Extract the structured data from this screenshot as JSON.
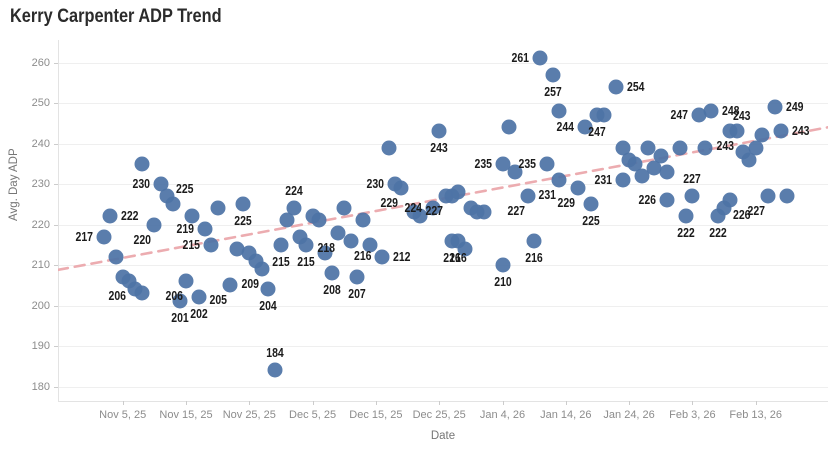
{
  "title": "Kerry Carpenter ADP Trend",
  "colors": {
    "point": "#4d73a6",
    "trend_line": "#ecacb0",
    "gridline": "#efefef",
    "axis_text": "#8c8c8c",
    "label_text": "#1b1b1b",
    "title_text": "#2b2b2b",
    "background": "#ffffff"
  },
  "chart_data": {
    "type": "scatter",
    "title": "Kerry Carpenter ADP Trend",
    "xlabel": "Date",
    "ylabel": "Avg. Day ADP",
    "ylim": [
      176,
      266
    ],
    "y_ticks": [
      180,
      190,
      200,
      210,
      220,
      230,
      240,
      250,
      260
    ],
    "x_tick_labels": [
      "Nov 5, 25",
      "Nov 15, 25",
      "Nov 25, 25",
      "Dec 5, 25",
      "Dec 15, 25",
      "Dec 25, 25",
      "Jan 4, 26",
      "Jan 14, 26",
      "Jan 24, 26",
      "Feb 3, 26",
      "Feb 13, 26"
    ],
    "grid": "horizontal-only",
    "legend": "none",
    "trend_line": {
      "style": "dashed",
      "start_value": 208.8,
      "end_value": 244,
      "note": "linear trend across full plot width"
    },
    "points": [
      {
        "date": "Nov 2, 25",
        "adp": 217,
        "label": "217",
        "label_pos": "l"
      },
      {
        "date": "Nov 3, 25",
        "adp": 222,
        "label": "222",
        "label_pos": "r"
      },
      {
        "date": "Nov 4, 25",
        "adp": 212
      },
      {
        "date": "Nov 5, 25",
        "adp": 207
      },
      {
        "date": "Nov 6, 25",
        "adp": 206,
        "label": "206",
        "label_pos": "bl"
      },
      {
        "date": "Nov 7, 25",
        "adp": 204
      },
      {
        "date": "Nov 8, 25",
        "adp": 235
      },
      {
        "date": "Nov 8, 25",
        "adp": 203
      },
      {
        "date": "Nov 10, 25",
        "adp": 220,
        "label": "220",
        "label_pos": "bl"
      },
      {
        "date": "Nov 11, 25",
        "adp": 230,
        "label": "230",
        "label_pos": "l"
      },
      {
        "date": "Nov 12, 25",
        "adp": 227
      },
      {
        "date": "Nov 13, 25",
        "adp": 225,
        "label": "225",
        "label_pos": "tr"
      },
      {
        "date": "Nov 14, 25",
        "adp": 201,
        "label": "201",
        "label_pos": "b"
      },
      {
        "date": "Nov 15, 25",
        "adp": 206,
        "label": "206",
        "label_pos": "bl"
      },
      {
        "date": "Nov 16, 25",
        "adp": 222
      },
      {
        "date": "Nov 17, 25",
        "adp": 202,
        "label": "202",
        "label_pos": "b"
      },
      {
        "date": "Nov 18, 25",
        "adp": 219,
        "label": "219",
        "label_pos": "l"
      },
      {
        "date": "Nov 19, 25",
        "adp": 215,
        "label": "215",
        "label_pos": "l"
      },
      {
        "date": "Nov 20, 25",
        "adp": 224
      },
      {
        "date": "Nov 22, 25",
        "adp": 205,
        "label": "205",
        "label_pos": "bl"
      },
      {
        "date": "Nov 23, 25",
        "adp": 214
      },
      {
        "date": "Nov 24, 25",
        "adp": 225,
        "label": "225",
        "label_pos": "b"
      },
      {
        "date": "Nov 25, 25",
        "adp": 213
      },
      {
        "date": "Nov 26, 25",
        "adp": 211
      },
      {
        "date": "Nov 27, 25",
        "adp": 209,
        "label": "209",
        "label_pos": "bl"
      },
      {
        "date": "Nov 28, 25",
        "adp": 204,
        "label": "204",
        "label_pos": "b"
      },
      {
        "date": "Nov 29, 25",
        "adp": 184,
        "label": "184",
        "label_pos": "t"
      },
      {
        "date": "Nov 30, 25",
        "adp": 215,
        "label": "215",
        "label_pos": "b"
      },
      {
        "date": "Dec 1, 25",
        "adp": 221
      },
      {
        "date": "Dec 2, 25",
        "adp": 224,
        "label": "224",
        "label_pos": "t"
      },
      {
        "date": "Dec 3, 25",
        "adp": 217
      },
      {
        "date": "Dec 4, 25",
        "adp": 215,
        "label": "215",
        "label_pos": "b"
      },
      {
        "date": "Dec 5, 25",
        "adp": 222
      },
      {
        "date": "Dec 6, 25",
        "adp": 221
      },
      {
        "date": "Dec 7, 25",
        "adp": 213
      },
      {
        "date": "Dec 8, 25",
        "adp": 208,
        "label": "208",
        "label_pos": "b"
      },
      {
        "date": "Dec 9, 25",
        "adp": 218,
        "label": "218",
        "label_pos": "bl"
      },
      {
        "date": "Dec 10, 25",
        "adp": 224
      },
      {
        "date": "Dec 11, 25",
        "adp": 216,
        "label": "216",
        "label_pos": "br"
      },
      {
        "date": "Dec 12, 25",
        "adp": 207,
        "label": "207",
        "label_pos": "b"
      },
      {
        "date": "Dec 13, 25",
        "adp": 221
      },
      {
        "date": "Dec 14, 25",
        "adp": 215
      },
      {
        "date": "Dec 16, 25",
        "adp": 212,
        "label": "212",
        "label_pos": "r"
      },
      {
        "date": "Dec 17, 25",
        "adp": 239
      },
      {
        "date": "Dec 18, 25",
        "adp": 230,
        "label": "230",
        "label_pos": "l"
      },
      {
        "date": "Dec 19, 25",
        "adp": 229,
        "label": "229",
        "label_pos": "bl"
      },
      {
        "date": "Dec 21, 25",
        "adp": 223
      },
      {
        "date": "Dec 22, 25",
        "adp": 222
      },
      {
        "date": "Dec 24, 25",
        "adp": 224,
        "label": "224",
        "label_pos": "l"
      },
      {
        "date": "Dec 25, 25",
        "adp": 243,
        "label": "243",
        "label_pos": "b"
      },
      {
        "date": "Dec 26, 25",
        "adp": 227,
        "label": "227",
        "label_pos": "bl"
      },
      {
        "date": "Dec 27, 25",
        "adp": 227
      },
      {
        "date": "Dec 27, 25",
        "adp": 216,
        "label": "216",
        "label_pos": "b"
      },
      {
        "date": "Dec 28, 25",
        "adp": 216,
        "label": "216",
        "label_pos": "b"
      },
      {
        "date": "Dec 28, 25",
        "adp": 228
      },
      {
        "date": "Dec 29, 25",
        "adp": 214
      },
      {
        "date": "Dec 30, 25",
        "adp": 224
      },
      {
        "date": "Dec 31, 25",
        "adp": 223
      },
      {
        "date": "Jan 1, 26",
        "adp": 223
      },
      {
        "date": "Jan 4, 26",
        "adp": 235,
        "label": "235",
        "label_pos": "l"
      },
      {
        "date": "Jan 4, 26",
        "adp": 210,
        "label": "210",
        "label_pos": "b"
      },
      {
        "date": "Jan 5, 26",
        "adp": 244
      },
      {
        "date": "Jan 6, 26",
        "adp": 233
      },
      {
        "date": "Jan 8, 26",
        "adp": 227,
        "label": "227",
        "label_pos": "bl"
      },
      {
        "date": "Jan 9, 26",
        "adp": 216,
        "label": "216",
        "label_pos": "b"
      },
      {
        "date": "Jan 10, 26",
        "adp": 261,
        "label": "261",
        "label_pos": "l"
      },
      {
        "date": "Jan 11, 26",
        "adp": 235,
        "label": "235",
        "label_pos": "l"
      },
      {
        "date": "Jan 12, 26",
        "adp": 257,
        "label": "257",
        "label_pos": "b"
      },
      {
        "date": "Jan 13, 26",
        "adp": 248
      },
      {
        "date": "Jan 13, 26",
        "adp": 231,
        "label": "231",
        "label_pos": "bl"
      },
      {
        "date": "Jan 16, 26",
        "adp": 229,
        "label": "229",
        "label_pos": "bl"
      },
      {
        "date": "Jan 17, 26",
        "adp": 244,
        "label": "244",
        "label_pos": "l"
      },
      {
        "date": "Jan 18, 26",
        "adp": 225,
        "label": "225",
        "label_pos": "b"
      },
      {
        "date": "Jan 19, 26",
        "adp": 247,
        "label": "247",
        "label_pos": "b"
      },
      {
        "date": "Jan 20, 26",
        "adp": 247
      },
      {
        "date": "Jan 22, 26",
        "adp": 254,
        "label": "254",
        "label_pos": "r"
      },
      {
        "date": "Jan 23, 26",
        "adp": 231,
        "label": "231",
        "label_pos": "l"
      },
      {
        "date": "Jan 23, 26",
        "adp": 239
      },
      {
        "date": "Jan 24, 26",
        "adp": 236
      },
      {
        "date": "Jan 25, 26",
        "adp": 235
      },
      {
        "date": "Jan 26, 26",
        "adp": 232
      },
      {
        "date": "Jan 27, 26",
        "adp": 239
      },
      {
        "date": "Jan 28, 26",
        "adp": 234
      },
      {
        "date": "Jan 29, 26",
        "adp": 237
      },
      {
        "date": "Jan 30, 26",
        "adp": 226,
        "label": "226",
        "label_pos": "l"
      },
      {
        "date": "Jan 30, 26",
        "adp": 233
      },
      {
        "date": "Feb 1, 26",
        "adp": 239
      },
      {
        "date": "Feb 2, 26",
        "adp": 222,
        "label": "222",
        "label_pos": "b"
      },
      {
        "date": "Feb 3, 26",
        "adp": 227,
        "label": "227",
        "label_pos": "t"
      },
      {
        "date": "Feb 4, 26",
        "adp": 247,
        "label": "247",
        "label_pos": "l"
      },
      {
        "date": "Feb 5, 26",
        "adp": 239
      },
      {
        "date": "Feb 6, 26",
        "adp": 248,
        "label": "248",
        "label_pos": "r"
      },
      {
        "date": "Feb 7, 26",
        "adp": 222,
        "label": "222",
        "label_pos": "b"
      },
      {
        "date": "Feb 8, 26",
        "adp": 224
      },
      {
        "date": "Feb 9, 26",
        "adp": 226,
        "label": "226",
        "label_pos": "br"
      },
      {
        "date": "Feb 9, 26",
        "adp": 243,
        "label": "243",
        "label_pos": "tr"
      },
      {
        "date": "Feb 10, 26",
        "adp": 243,
        "label": "243",
        "label_pos": "bl"
      },
      {
        "date": "Feb 11, 26",
        "adp": 238
      },
      {
        "date": "Feb 12, 26",
        "adp": 236
      },
      {
        "date": "Feb 13, 26",
        "adp": 239
      },
      {
        "date": "Feb 14, 26",
        "adp": 242
      },
      {
        "date": "Feb 15, 26",
        "adp": 227,
        "label": "227",
        "label_pos": "bl"
      },
      {
        "date": "Feb 16, 26",
        "adp": 249,
        "label": "249",
        "label_pos": "r"
      },
      {
        "date": "Feb 17, 26",
        "adp": 243,
        "label": "243",
        "label_pos": "r"
      },
      {
        "date": "Feb 18, 26",
        "adp": 227
      }
    ]
  }
}
